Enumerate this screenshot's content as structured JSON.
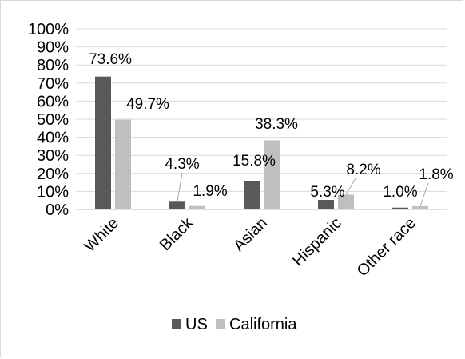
{
  "chart_data": {
    "type": "bar",
    "categories": [
      "White",
      "Black",
      "Asian",
      "Hispanic",
      "Other race"
    ],
    "series": [
      {
        "name": "US",
        "color": "#595959",
        "values": [
          73.6,
          4.3,
          15.8,
          5.3,
          1.0
        ],
        "labels": [
          "73.6%",
          "4.3%",
          "15.8%",
          "5.3%",
          "1.0%"
        ]
      },
      {
        "name": "California",
        "color": "#bfbfbf",
        "values": [
          49.7,
          1.9,
          38.3,
          8.2,
          1.8
        ],
        "labels": [
          "49.7%",
          "1.9%",
          "38.3%",
          "8.2%",
          "1.8%"
        ]
      }
    ],
    "ylim": [
      0,
      100
    ],
    "yticks": [
      "0%",
      "10%",
      "20%",
      "30%",
      "40%",
      "50%",
      "60%",
      "70%",
      "80%",
      "90%",
      "100%"
    ],
    "grid": true,
    "legend": "bottom",
    "title": "",
    "xlabel": "",
    "ylabel": ""
  }
}
